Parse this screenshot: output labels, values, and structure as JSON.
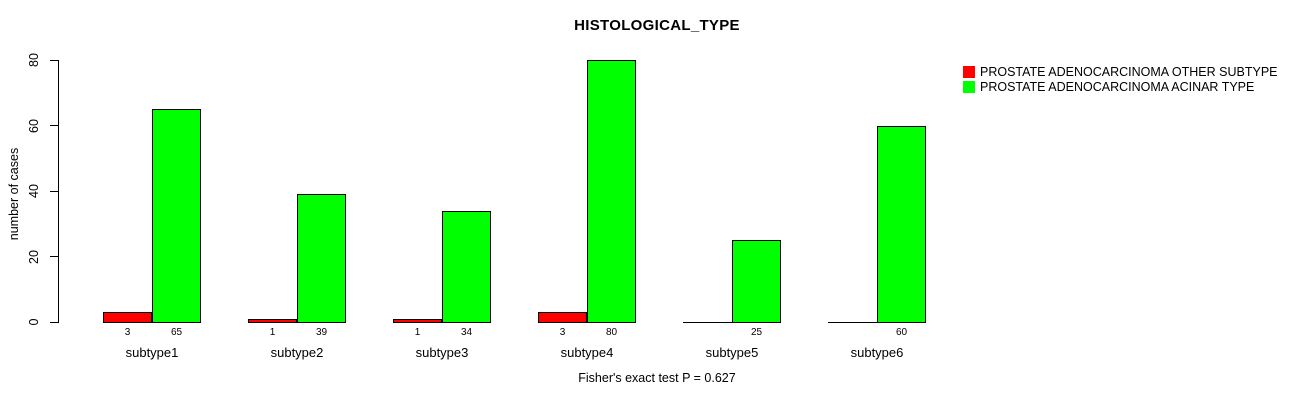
{
  "chart_data": {
    "type": "bar",
    "title": "HISTOLOGICAL_TYPE",
    "ylabel": "number of cases",
    "xlabel": "",
    "ylim": [
      0,
      80
    ],
    "yticks": [
      0,
      20,
      40,
      60,
      80
    ],
    "categories": [
      "subtype1",
      "subtype2",
      "subtype3",
      "subtype4",
      "subtype5",
      "subtype6"
    ],
    "series": [
      {
        "name": "PROSTATE ADENOCARCINOMA  OTHER SUBTYPE",
        "color": "#FF0000",
        "values": [
          3,
          1,
          1,
          3,
          0,
          0
        ],
        "value_labels": [
          "3",
          "1",
          "1",
          "3",
          "",
          ""
        ]
      },
      {
        "name": "PROSTATE ADENOCARCINOMA ACINAR TYPE",
        "color": "#00FF00",
        "values": [
          65,
          39,
          34,
          80,
          25,
          60
        ],
        "value_labels": [
          "65",
          "39",
          "34",
          "80",
          "25",
          "60"
        ]
      }
    ],
    "footer": "Fisher's exact test P = 0.627",
    "legend_position": "top-right",
    "grid": false
  }
}
